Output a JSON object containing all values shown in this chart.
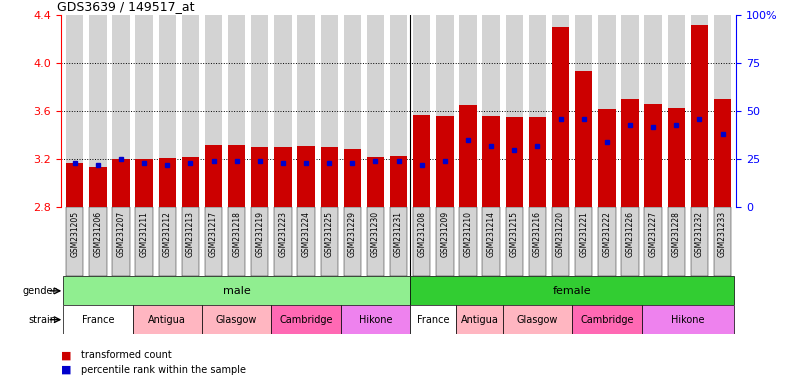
{
  "title": "GDS3639 / 149517_at",
  "samples": [
    "GSM231205",
    "GSM231206",
    "GSM231207",
    "GSM231211",
    "GSM231212",
    "GSM231213",
    "GSM231217",
    "GSM231218",
    "GSM231219",
    "GSM231223",
    "GSM231224",
    "GSM231225",
    "GSM231229",
    "GSM231230",
    "GSM231231",
    "GSM231208",
    "GSM231209",
    "GSM231210",
    "GSM231214",
    "GSM231215",
    "GSM231216",
    "GSM231220",
    "GSM231221",
    "GSM231222",
    "GSM231226",
    "GSM231227",
    "GSM231228",
    "GSM231232",
    "GSM231233"
  ],
  "red_values": [
    3.17,
    3.14,
    3.2,
    3.2,
    3.21,
    3.22,
    3.32,
    3.32,
    3.3,
    3.3,
    3.31,
    3.3,
    3.29,
    3.22,
    3.23,
    3.57,
    3.56,
    3.65,
    3.56,
    3.55,
    3.55,
    4.3,
    3.94,
    3.62,
    3.7,
    3.66,
    3.63,
    4.32,
    3.7
  ],
  "blue_values": [
    23,
    22,
    25,
    23,
    22,
    23,
    24,
    24,
    24,
    23,
    23,
    23,
    23,
    24,
    24,
    22,
    24,
    35,
    32,
    30,
    32,
    46,
    46,
    34,
    43,
    42,
    43,
    46,
    38
  ],
  "ymin": 2.8,
  "ymax": 4.4,
  "yticks_red": [
    2.8,
    3.2,
    3.6,
    4.0,
    4.4
  ],
  "ytick_labels_red": [
    "2.8",
    "3.2",
    "3.6",
    "4.0",
    "4.4"
  ],
  "yticks_blue": [
    0,
    25,
    50,
    75,
    100
  ],
  "ytick_labels_blue": [
    "0",
    "25",
    "50",
    "75",
    "100%"
  ],
  "dotted_lines": [
    3.2,
    3.6,
    4.0
  ],
  "bar_color": "#cc0000",
  "blue_color": "#0000cc",
  "bg_color": "#d3d3d3",
  "gender_groups": [
    {
      "label": "male",
      "start": 0,
      "end": 15,
      "color": "#90EE90"
    },
    {
      "label": "female",
      "start": 15,
      "end": 29,
      "color": "#32CD32"
    }
  ],
  "strain_groups": [
    {
      "label": "France",
      "start": 0,
      "end": 3,
      "color": "#FFFFFF"
    },
    {
      "label": "Antigua",
      "start": 3,
      "end": 6,
      "color": "#FFB6C1"
    },
    {
      "label": "Glasgow",
      "start": 6,
      "end": 9,
      "color": "#FFB6C1"
    },
    {
      "label": "Cambridge",
      "start": 9,
      "end": 12,
      "color": "#FF69B4"
    },
    {
      "label": "Hikone",
      "start": 12,
      "end": 15,
      "color": "#EE82EE"
    },
    {
      "label": "France",
      "start": 15,
      "end": 17,
      "color": "#FFFFFF"
    },
    {
      "label": "Antigua",
      "start": 17,
      "end": 19,
      "color": "#FFB6C1"
    },
    {
      "label": "Glasgow",
      "start": 19,
      "end": 22,
      "color": "#FFB6C1"
    },
    {
      "label": "Cambridge",
      "start": 22,
      "end": 25,
      "color": "#FF69B4"
    },
    {
      "label": "Hikone",
      "start": 25,
      "end": 29,
      "color": "#EE82EE"
    }
  ],
  "legend_items": [
    {
      "label": "transformed count",
      "color": "#cc0000"
    },
    {
      "label": "percentile rank within the sample",
      "color": "#0000cc"
    }
  ],
  "fig_width": 8.11,
  "fig_height": 3.84,
  "dpi": 100
}
